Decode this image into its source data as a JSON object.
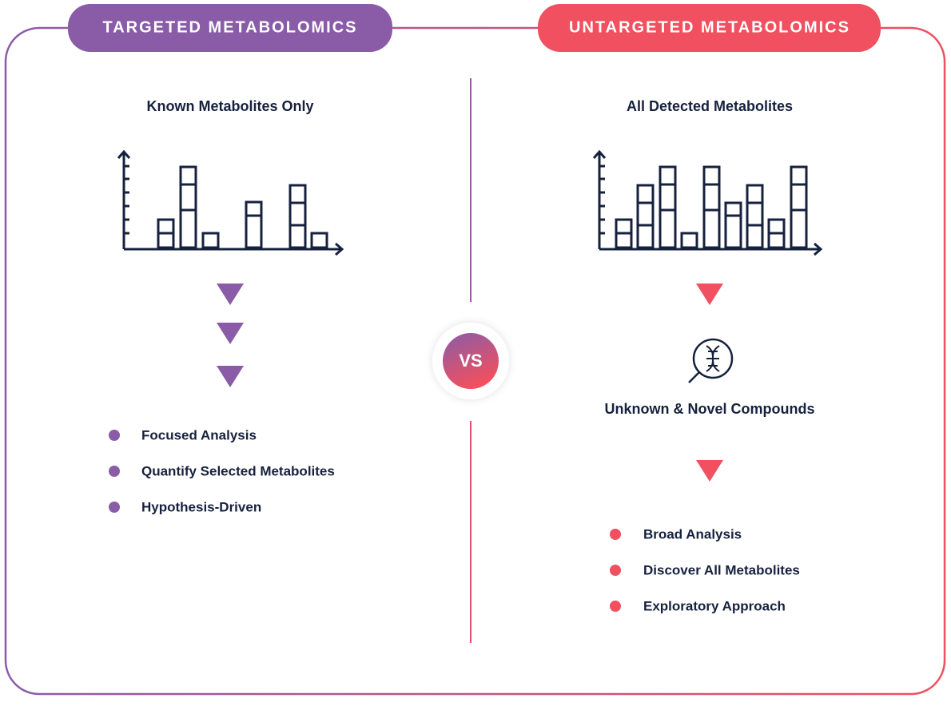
{
  "left": {
    "header": "TARGETED METABOLOMICS",
    "title": "Known Metabolites Only",
    "bullets": [
      "Focused Analysis",
      "Quantify Selected Metabolites",
      "Hypothesis-Driven"
    ]
  },
  "center": {
    "label": "VS"
  },
  "right": {
    "header": "UNTARGETED METABOLOMICS",
    "title": "All Detected Metabolites",
    "result": "Unknown & Novel Compounds",
    "bullets": [
      "Broad Analysis",
      "Discover All Metabolites",
      "Exploratory Approach"
    ]
  }
}
